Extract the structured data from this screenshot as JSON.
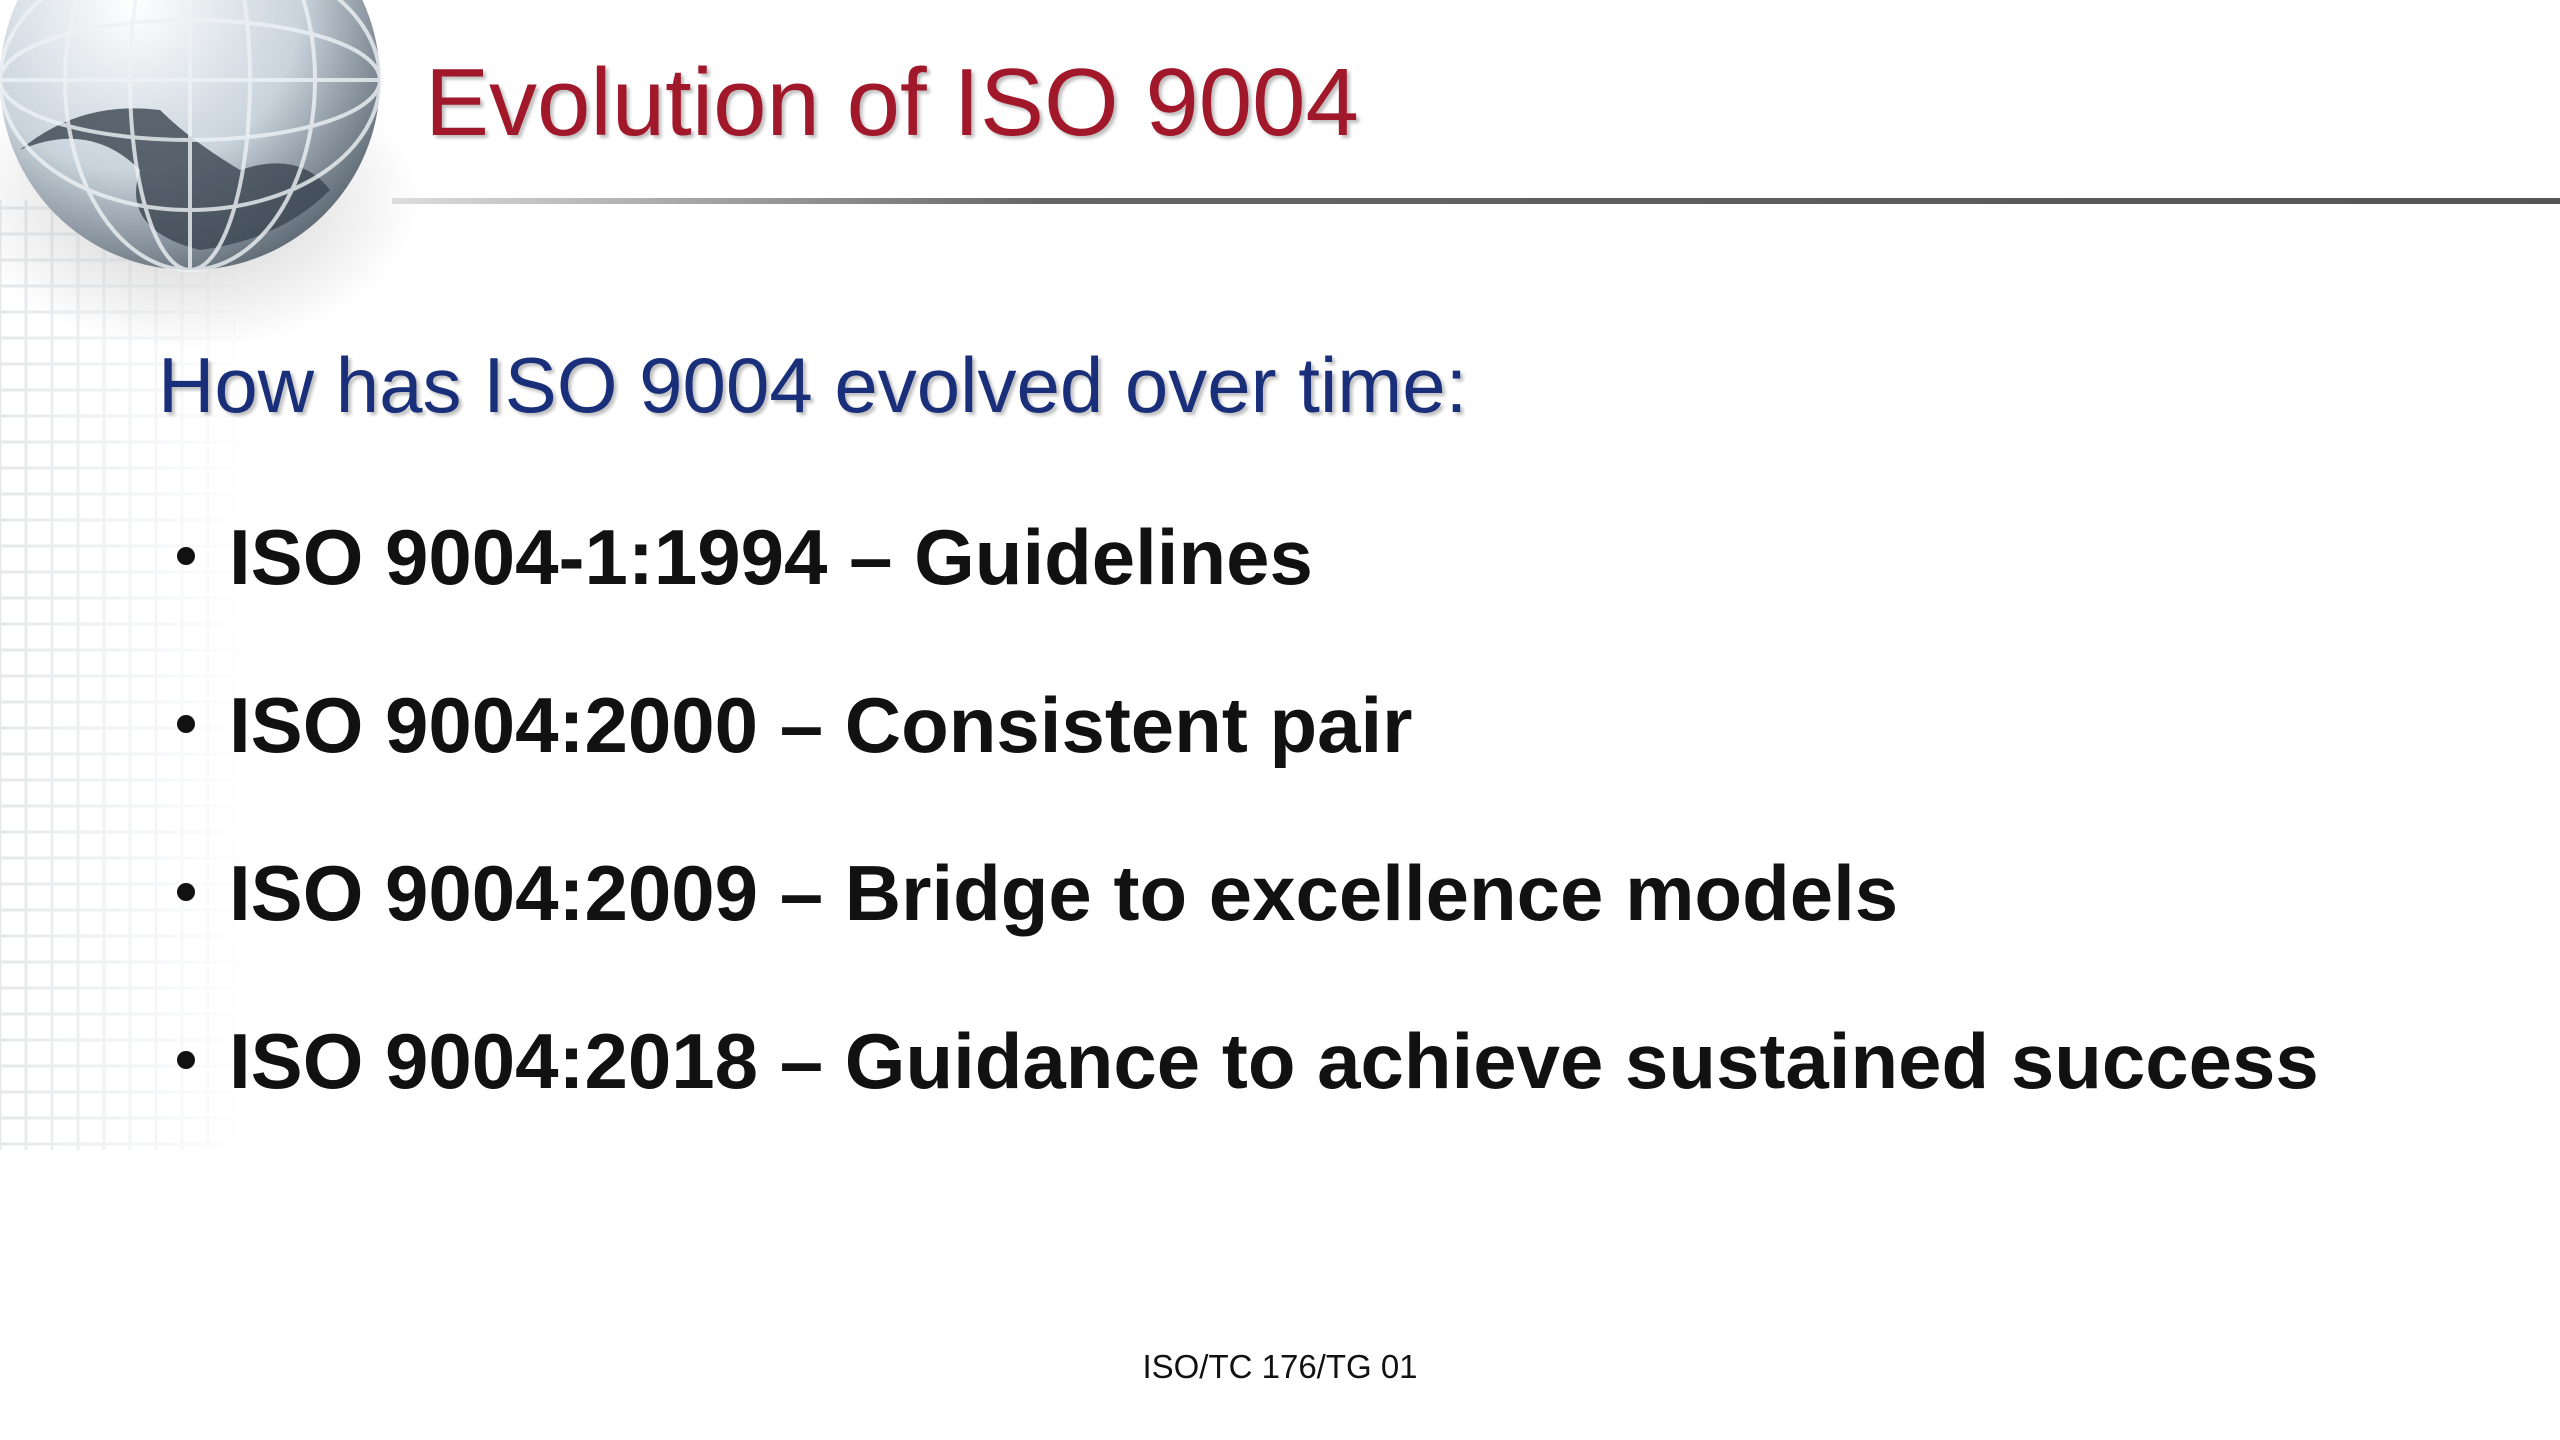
{
  "title": "Evolution of ISO 9004",
  "subtitle": "How has ISO 9004 evolved over time:",
  "bullets": [
    "ISO 9004-1:1994 – Guidelines",
    "ISO 9004:2000 – Consistent pair",
    "ISO 9004:2009 – Bridge to excellence models",
    "ISO 9004:2018 – Guidance to achieve sustained success"
  ],
  "footer": "ISO/TC 176/TG 01"
}
